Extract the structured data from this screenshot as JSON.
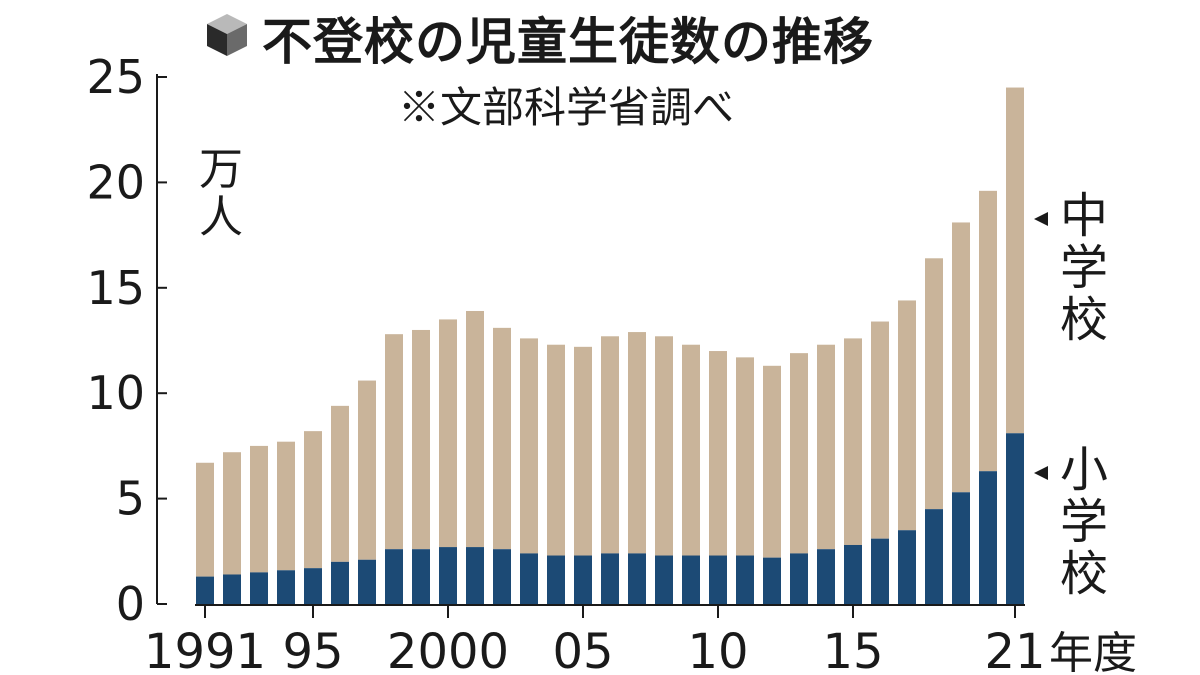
{
  "chart_data": {
    "type": "bar",
    "stacked": true,
    "title": "不登校の児童生徒数の推移",
    "source_note": "※文部科学省調べ",
    "ylabel": "万人",
    "ylim": [
      0,
      25
    ],
    "yticks": [
      "0",
      "5",
      "10",
      "15",
      "20",
      "25"
    ],
    "x": [
      1991,
      1992,
      1993,
      1994,
      1995,
      1996,
      1997,
      1998,
      1999,
      2000,
      2001,
      2002,
      2003,
      2004,
      2005,
      2006,
      2007,
      2008,
      2009,
      2010,
      2011,
      2012,
      2013,
      2014,
      2015,
      2016,
      2017,
      2018,
      2019,
      2020,
      2021
    ],
    "xtick_labels": [
      {
        "year": 1991,
        "label": "1991"
      },
      {
        "year": 1995,
        "label": "95"
      },
      {
        "year": 2000,
        "label": "2000"
      },
      {
        "year": 2005,
        "label": "05"
      },
      {
        "year": 2010,
        "label": "10"
      },
      {
        "year": 2015,
        "label": "15"
      },
      {
        "year": 2021,
        "label": "21"
      }
    ],
    "x_unit_label": "年度",
    "series": [
      {
        "name": "小学校",
        "color": "#1c4a75",
        "values": [
          1.3,
          1.4,
          1.5,
          1.6,
          1.7,
          2.0,
          2.1,
          2.6,
          2.6,
          2.7,
          2.7,
          2.6,
          2.4,
          2.3,
          2.3,
          2.4,
          2.4,
          2.3,
          2.3,
          2.3,
          2.3,
          2.2,
          2.4,
          2.6,
          2.8,
          3.1,
          3.5,
          4.5,
          5.3,
          6.3,
          8.1
        ]
      },
      {
        "name": "中学校",
        "color": "#c9b49a",
        "values": [
          5.4,
          5.8,
          6.0,
          6.1,
          6.5,
          7.4,
          8.5,
          10.2,
          10.4,
          10.8,
          11.2,
          10.5,
          10.2,
          10.0,
          9.9,
          10.3,
          10.5,
          10.4,
          10.0,
          9.7,
          9.4,
          9.1,
          9.5,
          9.7,
          9.8,
          10.3,
          10.9,
          11.9,
          12.8,
          13.3,
          16.4
        ]
      }
    ]
  }
}
